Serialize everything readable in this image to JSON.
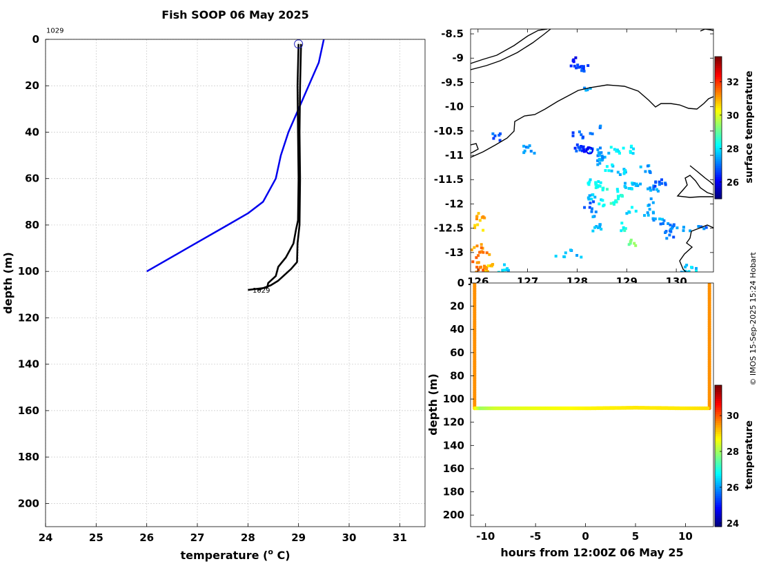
{
  "figure": {
    "title": "Fish SOOP 06 May 2025",
    "credit": "© IMOS 15-Sep-2025 15:24 Hobart"
  },
  "chart_data": [
    {
      "id": "profile",
      "type": "line",
      "xlabel": "temperature (° C)",
      "xlabel_main": "temperature (",
      "xlabel_sup": "o",
      "xlabel_tail": " C)",
      "ylabel": "depth (m)",
      "xlim": [
        24,
        31.5
      ],
      "ylim": [
        210,
        0
      ],
      "xticks": [
        24,
        25,
        26,
        27,
        28,
        29,
        30,
        31
      ],
      "yticks": [
        0,
        20,
        40,
        60,
        80,
        100,
        120,
        140,
        160,
        180,
        200
      ],
      "grid": true,
      "annotations": [
        {
          "text": "1029",
          "x": 24,
          "y": -4
        },
        {
          "text": "1029",
          "x": 28.05,
          "y": 108
        }
      ],
      "marker": {
        "shape": "circle",
        "x": 29.0,
        "y": 2,
        "color": "#1f1fbf"
      },
      "series": [
        {
          "color": "#0000ee",
          "points": [
            [
              29.5,
              0
            ],
            [
              29.4,
              10
            ],
            [
              29.2,
              20
            ],
            [
              29.0,
              30
            ],
            [
              28.8,
              40
            ],
            [
              28.65,
              50
            ],
            [
              28.55,
              60
            ],
            [
              28.3,
              70
            ],
            [
              28.0,
              75
            ],
            [
              27.6,
              80
            ],
            [
              26.8,
              90
            ],
            [
              26.0,
              100
            ]
          ]
        },
        {
          "color": "#000000",
          "points": [
            [
              29.0,
              2
            ],
            [
              28.98,
              20
            ],
            [
              28.99,
              40
            ],
            [
              29.0,
              60
            ],
            [
              28.99,
              78
            ],
            [
              28.95,
              82
            ],
            [
              28.9,
              88
            ],
            [
              28.75,
              94
            ],
            [
              28.6,
              98
            ],
            [
              28.55,
              102
            ],
            [
              28.4,
              105
            ],
            [
              28.38,
              107
            ],
            [
              28.0,
              108
            ]
          ]
        },
        {
          "color": "#000000",
          "points": [
            [
              29.05,
              2
            ],
            [
              29.03,
              20
            ],
            [
              29.02,
              40
            ],
            [
              29.03,
              60
            ],
            [
              29.02,
              80
            ],
            [
              28.98,
              88
            ],
            [
              28.97,
              96
            ],
            [
              28.85,
              99
            ],
            [
              28.6,
              104
            ],
            [
              28.45,
              106
            ],
            [
              28.2,
              108
            ]
          ]
        }
      ]
    },
    {
      "id": "map",
      "type": "heatmap",
      "xlim": [
        125.85,
        130.75
      ],
      "ylim": [
        -13.4,
        -8.4
      ],
      "xticks": [
        126,
        127,
        128,
        129,
        130
      ],
      "xticklabels": [
        "126",
        "127",
        "128",
        "129",
        "130"
      ],
      "yticks": [
        -8.5,
        -9,
        -9.5,
        -10,
        -10.5,
        -11,
        -11.5,
        -12,
        -12.5,
        -13
      ],
      "yticklabels": [
        "-8.5",
        "-9",
        "-9.5",
        "-10",
        "-10.5",
        "-11",
        "-11.5",
        "-12",
        "-12.5",
        "-13"
      ],
      "colorbar": {
        "label": "surface temperature",
        "range": [
          25,
          33.5
        ],
        "ticks": [
          26,
          28,
          30,
          32
        ]
      },
      "ship_position": {
        "lon": 128.25,
        "lat": -10.9
      },
      "sst_patches": [
        {
          "lon": 127.85,
          "lat": -9.0,
          "value": 26.0
        },
        {
          "lon": 127.95,
          "lat": -9.1,
          "value": 26.4
        },
        {
          "lon": 128.1,
          "lat": -9.2,
          "value": 26.6
        },
        {
          "lon": 128.15,
          "lat": -9.6,
          "value": 27.3
        },
        {
          "lon": 126.35,
          "lat": -10.6,
          "value": 26.8
        },
        {
          "lon": 128.0,
          "lat": -10.55,
          "value": 26.8
        },
        {
          "lon": 128.35,
          "lat": -10.45,
          "value": 27.0
        },
        {
          "lon": 127.0,
          "lat": -10.85,
          "value": 27.2
        },
        {
          "lon": 128.0,
          "lat": -10.8,
          "value": 26.6
        },
        {
          "lon": 128.15,
          "lat": -10.85,
          "value": 26.4
        },
        {
          "lon": 128.35,
          "lat": -10.9,
          "value": 27.4
        },
        {
          "lon": 128.5,
          "lat": -11.0,
          "value": 27.6
        },
        {
          "lon": 128.75,
          "lat": -10.85,
          "value": 28.0
        },
        {
          "lon": 129.0,
          "lat": -10.85,
          "value": 27.9
        },
        {
          "lon": 128.4,
          "lat": -11.1,
          "value": 27.4
        },
        {
          "lon": 128.65,
          "lat": -11.25,
          "value": 27.9
        },
        {
          "lon": 128.9,
          "lat": -11.3,
          "value": 27.8
        },
        {
          "lon": 129.35,
          "lat": -11.25,
          "value": 27.4
        },
        {
          "lon": 128.3,
          "lat": -11.55,
          "value": 28.2
        },
        {
          "lon": 128.45,
          "lat": -11.6,
          "value": 28.4
        },
        {
          "lon": 128.6,
          "lat": -11.6,
          "value": 28.5
        },
        {
          "lon": 128.8,
          "lat": -11.75,
          "value": 28.3
        },
        {
          "lon": 129.0,
          "lat": -11.6,
          "value": 27.8
        },
        {
          "lon": 129.15,
          "lat": -11.55,
          "value": 27.6
        },
        {
          "lon": 128.3,
          "lat": -11.85,
          "value": 27.7
        },
        {
          "lon": 128.5,
          "lat": -11.95,
          "value": 28.1
        },
        {
          "lon": 128.7,
          "lat": -11.9,
          "value": 28.6
        },
        {
          "lon": 129.5,
          "lat": -11.65,
          "value": 27.3
        },
        {
          "lon": 129.65,
          "lat": -11.55,
          "value": 26.8
        },
        {
          "lon": 128.2,
          "lat": -12.0,
          "value": 26.9
        },
        {
          "lon": 129.4,
          "lat": -11.95,
          "value": 27.6
        },
        {
          "lon": 129.05,
          "lat": -12.1,
          "value": 27.9
        },
        {
          "lon": 129.4,
          "lat": -12.15,
          "value": 27.7
        },
        {
          "lon": 129.6,
          "lat": -12.25,
          "value": 27.5
        },
        {
          "lon": 128.35,
          "lat": -12.2,
          "value": 27.4
        },
        {
          "lon": 128.35,
          "lat": -12.45,
          "value": 27.5
        },
        {
          "lon": 128.85,
          "lat": -12.45,
          "value": 28.4
        },
        {
          "lon": 129.75,
          "lat": -12.4,
          "value": 27.2
        },
        {
          "lon": 129.85,
          "lat": -12.6,
          "value": 27.0
        },
        {
          "lon": 129.95,
          "lat": -12.45,
          "value": 27.2
        },
        {
          "lon": 130.2,
          "lat": -12.45,
          "value": 27.3
        },
        {
          "lon": 130.5,
          "lat": -12.45,
          "value": 27.1
        },
        {
          "lon": 129.05,
          "lat": -12.8,
          "value": 29.3
        },
        {
          "lon": 127.65,
          "lat": -13.0,
          "value": 27.8
        },
        {
          "lon": 127.95,
          "lat": -13.0,
          "value": 27.6
        },
        {
          "lon": 126.05,
          "lat": -12.25,
          "value": 31.0
        },
        {
          "lon": 126.0,
          "lat": -12.45,
          "value": 30.5
        },
        {
          "lon": 125.95,
          "lat": -12.85,
          "value": 31.0
        },
        {
          "lon": 126.1,
          "lat": -12.95,
          "value": 31.3
        },
        {
          "lon": 125.95,
          "lat": -13.1,
          "value": 31.5
        },
        {
          "lon": 126.05,
          "lat": -13.25,
          "value": 31.2
        },
        {
          "lon": 126.2,
          "lat": -13.3,
          "value": 30.8
        },
        {
          "lon": 126.0,
          "lat": -13.35,
          "value": 31.4
        },
        {
          "lon": 126.5,
          "lat": -13.3,
          "value": 27.8
        },
        {
          "lon": 130.1,
          "lat": -13.3,
          "value": 27.6
        },
        {
          "lon": 130.3,
          "lat": -13.35,
          "value": 27.8
        }
      ]
    },
    {
      "id": "section",
      "type": "scatter",
      "xlabel": "hours from 12:00Z 06 May 25",
      "ylabel": "depth (m)",
      "xlim": [
        -11.5,
        12.8
      ],
      "ylim": [
        210,
        0
      ],
      "xticks": [
        -10,
        -5,
        0,
        5,
        10
      ],
      "yticks": [
        0,
        20,
        40,
        60,
        80,
        100,
        120,
        140,
        160,
        180,
        200
      ],
      "colorbar": {
        "label": "temperature",
        "range": [
          23.8,
          31.7
        ],
        "ticks": [
          24,
          26,
          28,
          30
        ]
      },
      "casts": [
        {
          "hour": -11.1,
          "value": 29.6
        },
        {
          "hour": 12.4,
          "value": 29.6
        }
      ],
      "cast_max_depth": 108,
      "bottom_track": [
        {
          "hour": -11.1,
          "depth": 108,
          "value": 28.9
        },
        {
          "hour": -10.5,
          "depth": 108,
          "value": 28.0
        },
        {
          "hour": -9.0,
          "depth": 108,
          "value": 28.4
        },
        {
          "hour": -5.0,
          "depth": 108,
          "value": 28.6
        },
        {
          "hour": 0.0,
          "depth": 108,
          "value": 28.8
        },
        {
          "hour": 5.0,
          "depth": 107.5,
          "value": 28.9
        },
        {
          "hour": 10.0,
          "depth": 108,
          "value": 28.9
        },
        {
          "hour": 12.4,
          "depth": 108,
          "value": 29.0
        }
      ]
    }
  ]
}
